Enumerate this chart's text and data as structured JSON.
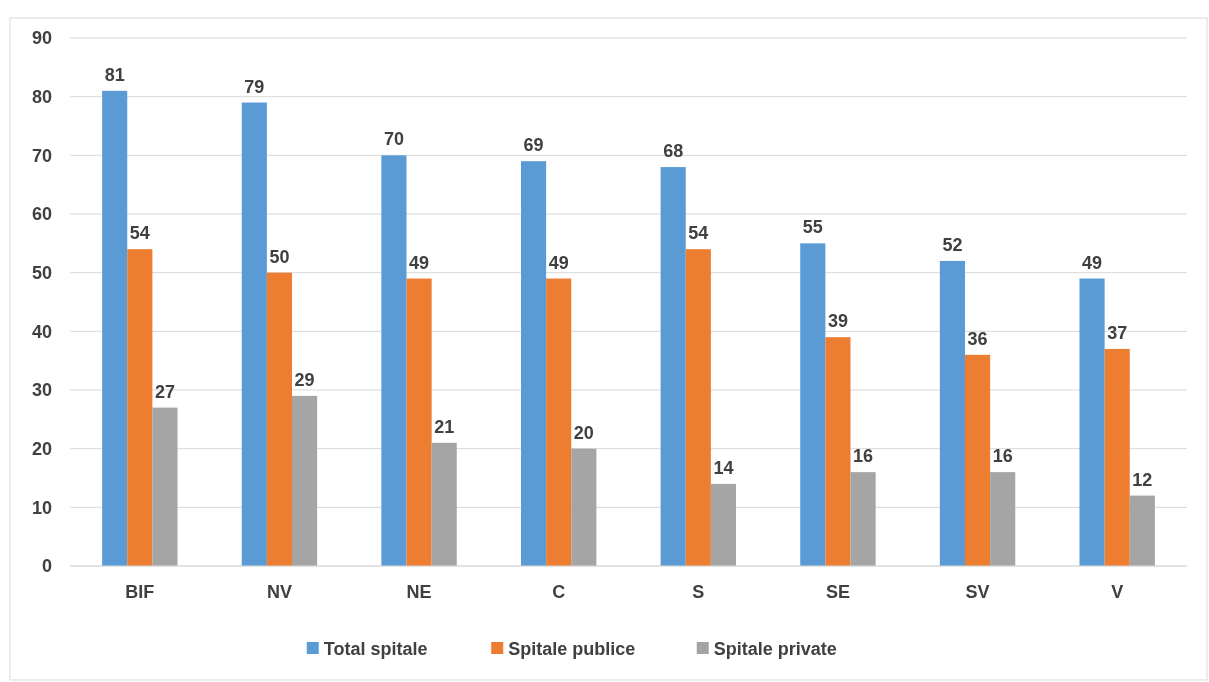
{
  "chart_data": {
    "type": "bar",
    "categories": [
      "BIF",
      "NV",
      "NE",
      "C",
      "S",
      "SE",
      "SV",
      "V"
    ],
    "series": [
      {
        "name": "Total spitale",
        "color": "#5b9bd5",
        "values": [
          81,
          79,
          70,
          69,
          68,
          55,
          52,
          49
        ]
      },
      {
        "name": "Spitale publice",
        "color": "#ed7d31",
        "values": [
          54,
          50,
          49,
          49,
          54,
          39,
          36,
          37
        ]
      },
      {
        "name": "Spitale private",
        "color": "#a5a5a5",
        "values": [
          27,
          29,
          21,
          20,
          14,
          16,
          16,
          12
        ]
      }
    ],
    "ylim": [
      0,
      90
    ],
    "yticks": [
      0,
      10,
      20,
      30,
      40,
      50,
      60,
      70,
      80,
      90
    ],
    "grid": "y",
    "legend": "bottom",
    "data_labels": true
  }
}
